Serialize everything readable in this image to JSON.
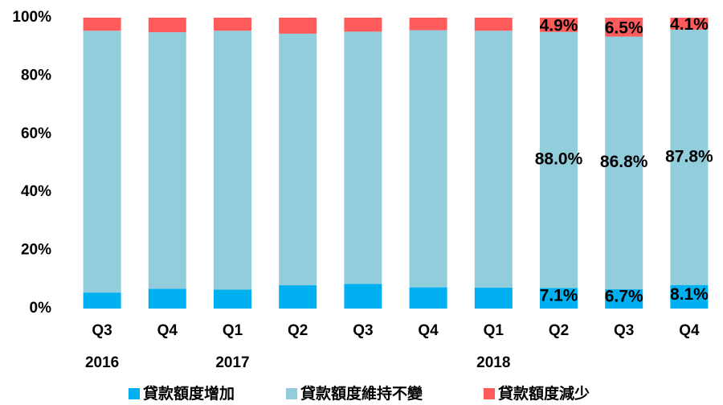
{
  "chart_data": {
    "type": "stacked_bar",
    "categories": [
      "Q3",
      "Q4",
      "Q1",
      "Q2",
      "Q3",
      "Q4",
      "Q1",
      "Q2",
      "Q3",
      "Q4"
    ],
    "category_groups": [
      "2016",
      null,
      "2017",
      null,
      null,
      null,
      "2018",
      null,
      null,
      null
    ],
    "series": [
      {
        "name": "貸款額度增加",
        "color": "#00b0f0",
        "values": [
          5.5,
          6.8,
          6.5,
          8.0,
          8.5,
          7.3,
          7.2,
          7.1,
          6.7,
          8.1
        ],
        "value_labels": [
          null,
          null,
          null,
          null,
          null,
          null,
          null,
          "7.1%",
          "6.7%",
          "8.1%"
        ]
      },
      {
        "name": "貸款額度維持不變",
        "color": "#92cddc",
        "values": [
          90.0,
          88.2,
          89.0,
          86.5,
          86.7,
          88.4,
          88.3,
          88.0,
          86.8,
          87.8
        ],
        "value_labels": [
          null,
          null,
          null,
          null,
          null,
          null,
          null,
          "88.0%",
          "86.8%",
          "87.8%"
        ]
      },
      {
        "name": "貸款額度減少",
        "color": "#ff5b5b",
        "values": [
          4.5,
          5.0,
          4.5,
          5.5,
          4.8,
          4.3,
          4.5,
          4.9,
          6.5,
          4.1
        ],
        "value_labels": [
          null,
          null,
          null,
          null,
          null,
          null,
          null,
          "4.9%",
          "6.5%",
          "4.1%"
        ]
      }
    ],
    "ylim": [
      0,
      100
    ],
    "yticks": [
      {
        "value": 0,
        "label": "0%"
      },
      {
        "value": 20,
        "label": "20%"
      },
      {
        "value": 40,
        "label": "40%"
      },
      {
        "value": 60,
        "label": "60%"
      },
      {
        "value": 80,
        "label": "80%"
      },
      {
        "value": 100,
        "label": "100%"
      }
    ],
    "legend": "bottom",
    "grid": false
  }
}
